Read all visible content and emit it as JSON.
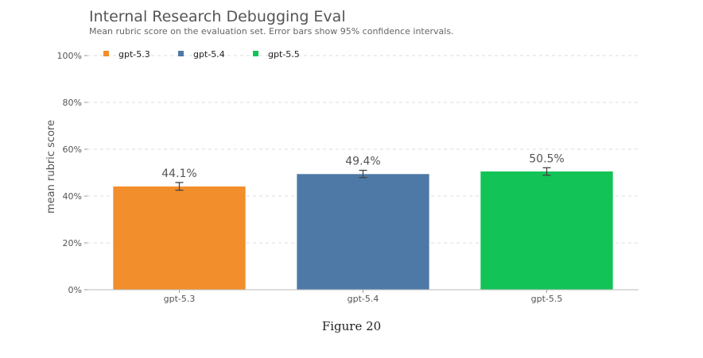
{
  "title": "Internal Research Debugging Eval",
  "subtitle": "Mean rubric score on the evaluation set. Error bars show 95% confidence intervals.",
  "caption": "Figure 20",
  "chart_data": {
    "type": "bar",
    "categories": [
      "gpt-5.3",
      "gpt-5.4",
      "gpt-5.5"
    ],
    "values": [
      44.1,
      49.4,
      50.5
    ],
    "value_labels": [
      "44.1%",
      "49.4%",
      "50.5%"
    ],
    "error_low": [
      42.5,
      47.9,
      48.9
    ],
    "error_high": [
      45.8,
      51.0,
      52.1
    ],
    "colors": [
      "#F28E2B",
      "#4E79A7",
      "#12C457"
    ],
    "legend": [
      "gpt-5.3",
      "gpt-5.4",
      "gpt-5.5"
    ],
    "legend_placement": "top-left",
    "ylabel": "mean rubric score",
    "xlabel": "",
    "ylim": [
      0,
      100
    ],
    "yticks": [
      0,
      20,
      40,
      60,
      80,
      100
    ],
    "ytick_labels": [
      "0%",
      "20%",
      "40%",
      "60%",
      "80%",
      "100%"
    ],
    "grid": true
  }
}
